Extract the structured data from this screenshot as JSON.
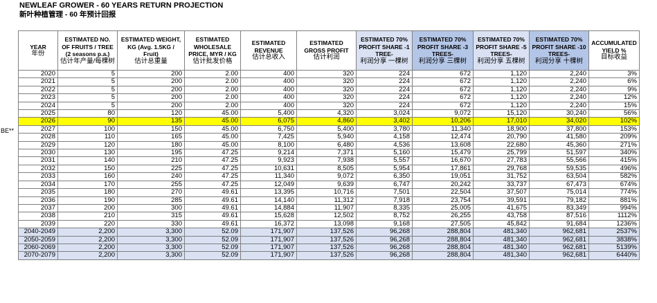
{
  "title": "NEWLEAF GROWER - 60 YEARS RETURN PROJECTION",
  "subtitle": "新叶种植管理 - 60 年预计回报",
  "side_marker": "BE**",
  "headers": [
    {
      "en": "YEAR",
      "zh": "年份"
    },
    {
      "en": "ESTIMATED NO. OF FRUITS / TREE (2 seasons p.a.)",
      "zh": "估计年产量/每棵树"
    },
    {
      "en": "ESTIMATED WEIGHT, KG (Avg. 1.5KG / Fruit)",
      "zh": "估计总重量"
    },
    {
      "en": "ESTIMATED WHOLESALE PRICE, MYR / KG",
      "zh": "估计批发价格"
    },
    {
      "en": "ESTIMATED REVENUE",
      "zh": "估计总收入"
    },
    {
      "en": "ESTIMATED GROSS PROFIT",
      "zh": "估计利润"
    },
    {
      "en": "ESTIMATED 70% PROFIT SHARE -1 TREE-",
      "zh": "利润分享 一棵树"
    },
    {
      "en": "ESTIMATED 70% PROFIT SHARE -3 TREES-",
      "zh": "利润分享 三棵树"
    },
    {
      "en": "ESTIMATED 70% PROFIT SHARE -5 TREES-",
      "zh": "利润分享 五棵树"
    },
    {
      "en": "ESTIMATED 70% PROFIT SHARE -10 TREES-",
      "zh": "利润分享 十棵树"
    },
    {
      "en": "ACCUMULATED YIELD %",
      "zh": "目标收益"
    }
  ],
  "rows": [
    [
      "2020",
      "5",
      "200",
      "2.00",
      "400",
      "320",
      "224",
      "672",
      "1,120",
      "2,240",
      "3%"
    ],
    [
      "2021",
      "5",
      "200",
      "2.00",
      "400",
      "320",
      "224",
      "672",
      "1,120",
      "2,240",
      "6%"
    ],
    [
      "2022",
      "5",
      "200",
      "2.00",
      "400",
      "320",
      "224",
      "672",
      "1,120",
      "2,240",
      "9%"
    ],
    [
      "2023",
      "5",
      "200",
      "2.00",
      "400",
      "320",
      "224",
      "672",
      "1,120",
      "2,240",
      "12%"
    ],
    [
      "2024",
      "5",
      "200",
      "2.00",
      "400",
      "320",
      "224",
      "672",
      "1,120",
      "2,240",
      "15%"
    ],
    [
      "2025",
      "80",
      "120",
      "45.00",
      "5,400",
      "4,320",
      "3,024",
      "9,072",
      "15,120",
      "30,240",
      "56%"
    ],
    [
      "2026",
      "90",
      "135",
      "45.00",
      "6,075",
      "4,860",
      "3,402",
      "10,206",
      "17,010",
      "34,020",
      "102%"
    ],
    [
      "2027",
      "100",
      "150",
      "45.00",
      "6,750",
      "5,400",
      "3,780",
      "11,340",
      "18,900",
      "37,800",
      "153%"
    ],
    [
      "2028",
      "110",
      "165",
      "45.00",
      "7,425",
      "5,940",
      "4,158",
      "12,474",
      "20,790",
      "41,580",
      "209%"
    ],
    [
      "2029",
      "120",
      "180",
      "45.00",
      "8,100",
      "6,480",
      "4,536",
      "13,608",
      "22,680",
      "45,360",
      "271%"
    ],
    [
      "2030",
      "130",
      "195",
      "47.25",
      "9,214",
      "7,371",
      "5,160",
      "15,479",
      "25,799",
      "51,597",
      "340%"
    ],
    [
      "2031",
      "140",
      "210",
      "47.25",
      "9,923",
      "7,938",
      "5,557",
      "16,670",
      "27,783",
      "55,566",
      "415%"
    ],
    [
      "2032",
      "150",
      "225",
      "47.25",
      "10,631",
      "8,505",
      "5,954",
      "17,861",
      "29,768",
      "59,535",
      "496%"
    ],
    [
      "2033",
      "160",
      "240",
      "47.25",
      "11,340",
      "9,072",
      "6,350",
      "19,051",
      "31,752",
      "63,504",
      "582%"
    ],
    [
      "2034",
      "170",
      "255",
      "47.25",
      "12,049",
      "9,639",
      "6,747",
      "20,242",
      "33,737",
      "67,473",
      "674%"
    ],
    [
      "2035",
      "180",
      "270",
      "49.61",
      "13,395",
      "10,716",
      "7,501",
      "22,504",
      "37,507",
      "75,014",
      "774%"
    ],
    [
      "2036",
      "190",
      "285",
      "49.61",
      "14,140",
      "11,312",
      "7,918",
      "23,754",
      "39,591",
      "79,182",
      "881%"
    ],
    [
      "2037",
      "200",
      "300",
      "49.61",
      "14,884",
      "11,907",
      "8,335",
      "25,005",
      "41,675",
      "83,349",
      "994%"
    ],
    [
      "2038",
      "210",
      "315",
      "49.61",
      "15,628",
      "12,502",
      "8,752",
      "26,255",
      "43,758",
      "87,516",
      "1112%"
    ],
    [
      "2039",
      "220",
      "330",
      "49.61",
      "16,372",
      "13,098",
      "9,168",
      "27,505",
      "45,842",
      "91,684",
      "1236%"
    ],
    [
      "2040-2049",
      "2,200",
      "3,300",
      "52.09",
      "171,907",
      "137,526",
      "96,268",
      "288,804",
      "481,340",
      "962,681",
      "2537%"
    ],
    [
      "2050-2059",
      "2,200",
      "3,300",
      "52.09",
      "171,907",
      "137,526",
      "96,268",
      "288,804",
      "481,340",
      "962,681",
      "3838%"
    ],
    [
      "2060-2069",
      "2,200",
      "3,300",
      "52.09",
      "171,907",
      "137,526",
      "96,268",
      "288,804",
      "481,340",
      "962,681",
      "5139%"
    ],
    [
      "2070-2079",
      "2,200",
      "3,300",
      "52.09",
      "171,907",
      "137,526",
      "96,268",
      "288,804",
      "481,340",
      "962,681",
      "6440%"
    ]
  ],
  "colors": {
    "highlight_row": "#ffff00",
    "decade_rows": "#d9e1f2",
    "header_highlight": "#b4c6e7"
  }
}
